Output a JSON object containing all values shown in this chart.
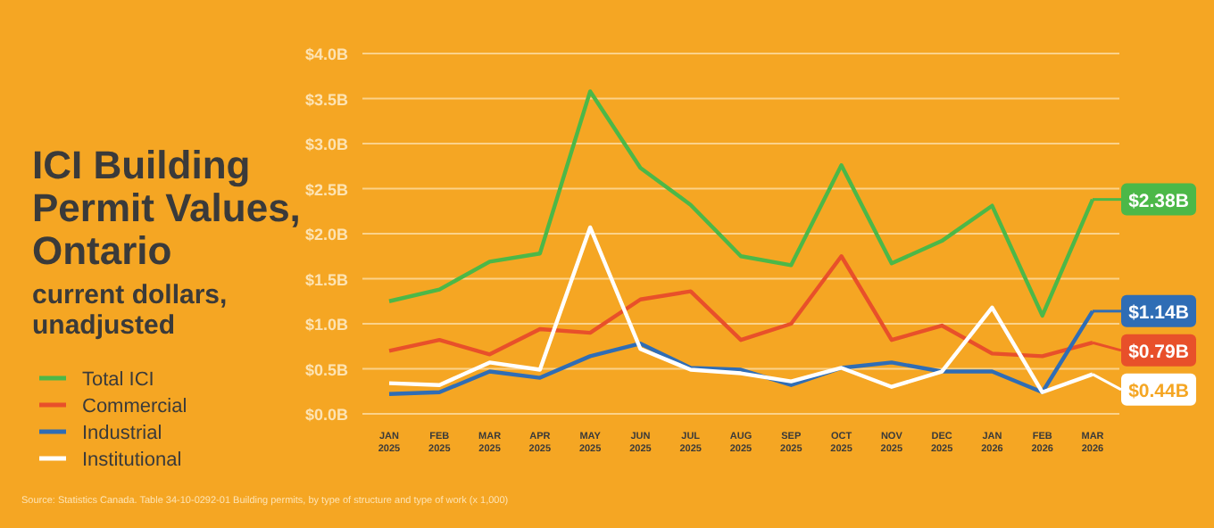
{
  "chart_data": {
    "type": "line",
    "title": "ICI Building Permit Values, Ontario",
    "subtitle": "current dollars, unadjusted",
    "categories": [
      "JAN 2025",
      "FEB 2025",
      "MAR 2025",
      "APR 2025",
      "MAY 2025",
      "JUN 2025",
      "JUL 2025",
      "AUG 2025",
      "SEP 2025",
      "OCT 2025",
      "NOV 2025",
      "DEC 2025",
      "JAN 2026",
      "FEB 2026",
      "MAR 2026"
    ],
    "series": [
      {
        "name": "Total ICI",
        "color": "#4cb848",
        "values": [
          1.25,
          1.38,
          1.69,
          1.78,
          3.58,
          2.73,
          2.32,
          1.75,
          1.65,
          2.76,
          1.67,
          1.92,
          2.31,
          1.09,
          2.38
        ],
        "value_labels": [
          null,
          null,
          null,
          null,
          null,
          null,
          null,
          null,
          null,
          null,
          null,
          null,
          null,
          null,
          "$2.38B"
        ]
      },
      {
        "name": "Commercial",
        "color": "#e8502a",
        "values": [
          0.7,
          0.82,
          0.66,
          0.94,
          0.9,
          1.27,
          1.36,
          0.82,
          1.0,
          1.75,
          0.82,
          0.98,
          0.67,
          0.64,
          0.79
        ],
        "value_labels": [
          null,
          null,
          null,
          null,
          null,
          null,
          null,
          null,
          null,
          null,
          null,
          null,
          null,
          null,
          "$0.79B"
        ]
      },
      {
        "name": "Industrial",
        "color": "#2f6db5",
        "values": [
          0.22,
          0.24,
          0.47,
          0.4,
          0.64,
          0.78,
          0.51,
          0.49,
          0.32,
          0.51,
          0.57,
          0.47,
          0.47,
          0.24,
          1.14
        ],
        "value_labels": [
          null,
          null,
          null,
          null,
          null,
          null,
          null,
          null,
          null,
          null,
          null,
          null,
          null,
          null,
          "$1.14B"
        ]
      },
      {
        "name": "Institutional",
        "color": "#ffffff",
        "values": [
          0.34,
          0.32,
          0.57,
          0.49,
          2.07,
          0.72,
          0.49,
          0.45,
          0.36,
          0.51,
          0.3,
          0.47,
          1.18,
          0.24,
          0.44
        ],
        "value_labels": [
          null,
          null,
          null,
          null,
          null,
          null,
          null,
          null,
          null,
          null,
          null,
          null,
          null,
          null,
          "$0.44B"
        ]
      }
    ],
    "ylim": [
      0,
      4
    ],
    "yticks": [
      {
        "value": 0,
        "label": "$0.0B"
      },
      {
        "value": 0.5,
        "label": "$0.5B"
      },
      {
        "value": 1,
        "label": "$1.0B"
      },
      {
        "value": 1.5,
        "label": "$1.5B"
      },
      {
        "value": 2,
        "label": "$2.0B"
      },
      {
        "value": 2.5,
        "label": "$2.5B"
      },
      {
        "value": 3,
        "label": "$3.0B"
      },
      {
        "value": 3.5,
        "label": "$3.5B"
      },
      {
        "value": 4,
        "label": "$4.0B"
      }
    ],
    "grid": "y",
    "legend": "left",
    "marker": "none",
    "line_style": "solid",
    "annotations": [
      "Source: Statistics Canada. Table 34-10-0292-01  Building permits, by type of structure and type of work (x 1,000)"
    ]
  }
}
